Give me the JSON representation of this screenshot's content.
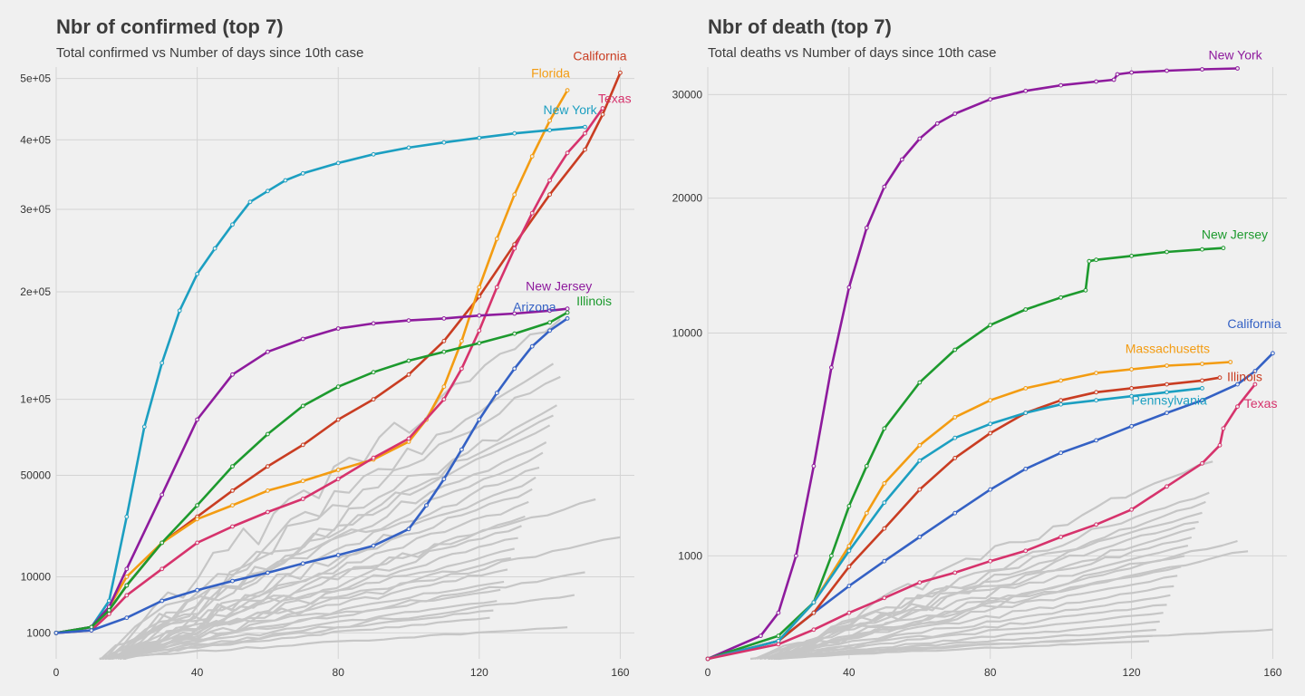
{
  "chart_data": [
    {
      "type": "line",
      "title": "Nbr of confirmed (top 7)",
      "subtitle": "Total confirmed vs Number of days since 10th case",
      "xlabel": "",
      "ylabel": "",
      "y_scale": "sqrt",
      "xlim": [
        0,
        164
      ],
      "ylim": [
        0,
        520000
      ],
      "x_ticks": [
        0,
        40,
        80,
        120,
        160
      ],
      "x_tick_labels": [
        "0",
        "40",
        "80",
        "120",
        "160"
      ],
      "y_ticks": [
        1000,
        10000,
        50000,
        100000,
        200000,
        300000,
        400000,
        500000
      ],
      "y_tick_labels": [
        "1000",
        "10000",
        "50000",
        "1e+05",
        "2e+05",
        "3e+05",
        "4e+05",
        "5e+05"
      ],
      "grid": true,
      "legend": "none",
      "background_series": {
        "color": "#c6c6c6",
        "end_points": [
          {
            "x": 160,
            "y": 22000
          },
          {
            "x": 153,
            "y": 38000
          },
          {
            "x": 143,
            "y": 118000
          },
          {
            "x": 142,
            "y": 95000
          },
          {
            "x": 141,
            "y": 88000
          },
          {
            "x": 140,
            "y": 80000
          },
          {
            "x": 139,
            "y": 70000
          },
          {
            "x": 138,
            "y": 62000
          },
          {
            "x": 137,
            "y": 55000
          },
          {
            "x": 136,
            "y": 48000
          },
          {
            "x": 135,
            "y": 42000
          },
          {
            "x": 134,
            "y": 36000
          },
          {
            "x": 133,
            "y": 30000
          },
          {
            "x": 132,
            "y": 26000
          },
          {
            "x": 131,
            "y": 22000
          },
          {
            "x": 130,
            "y": 18000
          },
          {
            "x": 129,
            "y": 15000
          },
          {
            "x": 128,
            "y": 12000
          },
          {
            "x": 127,
            "y": 9000
          },
          {
            "x": 126,
            "y": 7000
          },
          {
            "x": 125,
            "y": 5000
          },
          {
            "x": 124,
            "y": 3500
          },
          {
            "x": 123,
            "y": 2500
          },
          {
            "x": 150,
            "y": 11000
          },
          {
            "x": 147,
            "y": 6000
          },
          {
            "x": 145,
            "y": 1500
          },
          {
            "x": 141,
            "y": 128000
          },
          {
            "x": 143,
            "y": 172000
          }
        ]
      },
      "series": [
        {
          "name": "California",
          "color": "#c93d22",
          "label": "California",
          "x": [
            0,
            10,
            15,
            20,
            30,
            40,
            50,
            60,
            70,
            80,
            90,
            100,
            110,
            120,
            130,
            140,
            150,
            155,
            160
          ],
          "y": [
            1000,
            1500,
            3500,
            8000,
            20000,
            30000,
            42000,
            55000,
            68000,
            85000,
            100000,
            120000,
            150000,
            195000,
            255000,
            320000,
            385000,
            440000,
            510000
          ]
        },
        {
          "name": "Florida",
          "color": "#f39c12",
          "label": "Florida",
          "x": [
            0,
            10,
            15,
            20,
            30,
            40,
            50,
            60,
            70,
            80,
            90,
            100,
            105,
            110,
            115,
            120,
            125,
            130,
            135,
            140,
            145
          ],
          "y": [
            1000,
            1500,
            4000,
            10000,
            20000,
            29000,
            35000,
            42000,
            47000,
            53000,
            59000,
            70000,
            85000,
            110000,
            150000,
            205000,
            262000,
            320000,
            375000,
            430000,
            480000
          ]
        },
        {
          "name": "Texas",
          "color": "#d6336c",
          "label": "Texas",
          "x": [
            0,
            10,
            15,
            20,
            30,
            40,
            50,
            60,
            70,
            80,
            90,
            100,
            110,
            115,
            120,
            125,
            130,
            135,
            140,
            145,
            150,
            155
          ],
          "y": [
            1000,
            1200,
            3000,
            6000,
            12000,
            20000,
            26000,
            32000,
            38000,
            48000,
            60000,
            72000,
            100000,
            125000,
            160000,
            205000,
            250000,
            295000,
            340000,
            380000,
            410000,
            450000
          ]
        },
        {
          "name": "New York",
          "color": "#1c9fc1",
          "label": "New York",
          "x": [
            0,
            10,
            15,
            20,
            25,
            30,
            35,
            40,
            45,
            50,
            55,
            60,
            65,
            70,
            80,
            90,
            100,
            110,
            120,
            130,
            140,
            150
          ],
          "y": [
            1000,
            1500,
            5000,
            30000,
            80000,
            130000,
            180000,
            220000,
            250000,
            280000,
            310000,
            325000,
            340000,
            350000,
            365000,
            378000,
            388000,
            396000,
            403000,
            410000,
            415000,
            420000
          ]
        },
        {
          "name": "New Jersey",
          "color": "#8e1b9d",
          "label": "New Jersey",
          "x": [
            0,
            10,
            15,
            20,
            30,
            40,
            50,
            60,
            70,
            80,
            90,
            100,
            110,
            120,
            130,
            140,
            145
          ],
          "y": [
            1000,
            1500,
            4000,
            12000,
            40000,
            85000,
            120000,
            140000,
            152000,
            162000,
            167000,
            170000,
            172000,
            175000,
            177000,
            180000,
            182000
          ]
        },
        {
          "name": "Illinois",
          "color": "#1d9a2e",
          "label": "Illinois",
          "x": [
            0,
            10,
            15,
            20,
            30,
            40,
            50,
            60,
            70,
            80,
            90,
            100,
            110,
            120,
            130,
            140,
            145
          ],
          "y": [
            1000,
            1500,
            3500,
            8000,
            20000,
            35000,
            55000,
            75000,
            95000,
            110000,
            122000,
            132000,
            140000,
            148000,
            157000,
            168000,
            178000
          ]
        },
        {
          "name": "Arizona",
          "color": "#3461c4",
          "label": "Arizona",
          "x": [
            0,
            10,
            20,
            30,
            40,
            50,
            60,
            70,
            80,
            90,
            100,
            105,
            110,
            115,
            120,
            125,
            130,
            135,
            140,
            145
          ],
          "y": [
            1000,
            1200,
            2500,
            5000,
            7000,
            9000,
            11000,
            13500,
            16000,
            19000,
            25000,
            35000,
            48000,
            65000,
            85000,
            105000,
            125000,
            145000,
            160000,
            172000
          ]
        }
      ]
    },
    {
      "type": "line",
      "title": "Nbr of death (top 7)",
      "subtitle": "Total deaths vs Number of days since 10th case",
      "xlabel": "",
      "ylabel": "",
      "y_scale": "sqrt",
      "xlim": [
        0,
        164
      ],
      "ylim": [
        0,
        33000
      ],
      "x_ticks": [
        0,
        40,
        80,
        120,
        160
      ],
      "x_tick_labels": [
        "0",
        "40",
        "80",
        "120",
        "160"
      ],
      "y_ticks": [
        1000,
        10000,
        20000,
        30000
      ],
      "y_tick_labels": [
        "1000",
        "10000",
        "20000",
        "30000"
      ],
      "grid": true,
      "legend": "none",
      "background_series": {
        "color": "#c6c6c6",
        "end_points": [
          {
            "x": 160,
            "y": 80
          },
          {
            "x": 153,
            "y": 1100
          },
          {
            "x": 143,
            "y": 3700
          },
          {
            "x": 142,
            "y": 2600
          },
          {
            "x": 141,
            "y": 2300
          },
          {
            "x": 140,
            "y": 2000
          },
          {
            "x": 139,
            "y": 1800
          },
          {
            "x": 138,
            "y": 1600
          },
          {
            "x": 137,
            "y": 1400
          },
          {
            "x": 136,
            "y": 1200
          },
          {
            "x": 135,
            "y": 1000
          },
          {
            "x": 134,
            "y": 800
          },
          {
            "x": 133,
            "y": 650
          },
          {
            "x": 132,
            "y": 500
          },
          {
            "x": 131,
            "y": 380
          },
          {
            "x": 130,
            "y": 280
          },
          {
            "x": 129,
            "y": 200
          },
          {
            "x": 128,
            "y": 130
          },
          {
            "x": 127,
            "y": 80
          },
          {
            "x": 126,
            "y": 50
          },
          {
            "x": 125,
            "y": 30
          },
          {
            "x": 150,
            "y": 1300
          }
        ]
      },
      "series": [
        {
          "name": "New York",
          "color": "#8e1b9d",
          "label": "New York",
          "x": [
            0,
            15,
            20,
            25,
            30,
            35,
            40,
            45,
            50,
            55,
            60,
            65,
            70,
            80,
            90,
            100,
            110,
            115,
            116,
            120,
            130,
            140,
            150
          ],
          "y": [
            0,
            50,
            200,
            1000,
            3500,
            8000,
            13000,
            17500,
            21000,
            23500,
            25500,
            27000,
            28000,
            29500,
            30400,
            31000,
            31400,
            31600,
            32200,
            32400,
            32600,
            32750,
            32850
          ]
        },
        {
          "name": "New Jersey",
          "color": "#1d9a2e",
          "label": "New Jersey",
          "x": [
            0,
            20,
            30,
            35,
            40,
            45,
            50,
            60,
            70,
            80,
            90,
            100,
            107,
            108,
            110,
            120,
            130,
            140,
            146
          ],
          "y": [
            0,
            50,
            300,
            1000,
            2200,
            3500,
            5000,
            7200,
            9000,
            10500,
            11500,
            12300,
            12800,
            14900,
            15000,
            15300,
            15600,
            15800,
            15900
          ]
        },
        {
          "name": "California",
          "color": "#3461c4",
          "label": "California",
          "x": [
            0,
            20,
            30,
            40,
            50,
            60,
            70,
            80,
            90,
            100,
            110,
            120,
            130,
            140,
            150,
            155,
            160
          ],
          "y": [
            0,
            30,
            200,
            500,
            900,
            1400,
            2000,
            2700,
            3400,
            4000,
            4500,
            5100,
            5700,
            6300,
            7100,
            7800,
            8800
          ]
        },
        {
          "name": "Massachusetts",
          "color": "#f39c12",
          "label": "Massachusetts",
          "x": [
            0,
            20,
            30,
            40,
            45,
            50,
            60,
            70,
            80,
            90,
            100,
            110,
            120,
            130,
            140,
            148
          ],
          "y": [
            0,
            30,
            300,
            1200,
            2000,
            2900,
            4300,
            5500,
            6300,
            6900,
            7300,
            7700,
            7900,
            8100,
            8200,
            8300
          ]
        },
        {
          "name": "Illinois",
          "color": "#c93d22",
          "label": "Illinois",
          "x": [
            0,
            20,
            30,
            40,
            50,
            60,
            70,
            80,
            90,
            100,
            110,
            120,
            130,
            140,
            145
          ],
          "y": [
            0,
            30,
            200,
            800,
            1600,
            2700,
            3800,
            4800,
            5700,
            6300,
            6700,
            6900,
            7100,
            7300,
            7450
          ]
        },
        {
          "name": "Pennsylvania",
          "color": "#1c9fc1",
          "label": "Pennsylvania",
          "x": [
            0,
            20,
            30,
            40,
            50,
            60,
            70,
            80,
            90,
            100,
            110,
            120,
            130,
            140
          ],
          "y": [
            0,
            30,
            300,
            1100,
            2300,
            3700,
            4600,
            5200,
            5700,
            6100,
            6300,
            6500,
            6700,
            6900
          ]
        },
        {
          "name": "Texas",
          "color": "#d6336c",
          "label": "Texas",
          "x": [
            0,
            20,
            30,
            40,
            50,
            60,
            70,
            80,
            90,
            100,
            110,
            120,
            130,
            140,
            145,
            146,
            150,
            155
          ],
          "y": [
            0,
            20,
            80,
            200,
            350,
            550,
            700,
            900,
            1100,
            1400,
            1700,
            2100,
            2800,
            3600,
            4300,
            5000,
            6000,
            7100
          ]
        }
      ]
    }
  ]
}
